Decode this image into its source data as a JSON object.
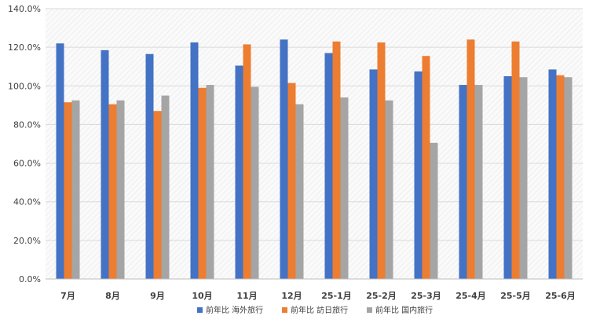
{
  "chart_data": {
    "type": "bar",
    "title": "",
    "xlabel": "",
    "ylabel": "",
    "categories": [
      "7月",
      "8月",
      "9月",
      "10月",
      "11月",
      "12月",
      "25-1月",
      "25-2月",
      "25-3月",
      "25-4月",
      "25-5月",
      "25-6月"
    ],
    "series": [
      {
        "name": "前年比 海外旅行",
        "color": "#4472C4",
        "values": [
          122.0,
          118.5,
          116.5,
          122.5,
          110.5,
          124.0,
          117.0,
          108.5,
          107.5,
          100.5,
          105.0,
          108.5
        ]
      },
      {
        "name": "前年比 訪日旅行",
        "color": "#ED7D31",
        "values": [
          91.5,
          90.5,
          87.0,
          99.0,
          121.5,
          101.5,
          123.0,
          122.5,
          115.5,
          124.0,
          123.0,
          105.5
        ]
      },
      {
        "name": "前年比 国内旅行",
        "color": "#A5A5A5",
        "values": [
          92.5,
          92.5,
          95.0,
          100.5,
          99.5,
          90.5,
          94.0,
          92.5,
          70.5,
          100.5,
          104.5,
          104.5
        ]
      }
    ],
    "ylim": [
      0,
      140
    ],
    "yticks": [
      0,
      20,
      40,
      60,
      80,
      100,
      120,
      140
    ],
    "ytick_labels": [
      "0.0%",
      "20.0%",
      "40.0%",
      "60.0%",
      "80.0%",
      "100.0%",
      "120.0%",
      "140.0%"
    ],
    "grid": true,
    "legend_position": "bottom"
  }
}
